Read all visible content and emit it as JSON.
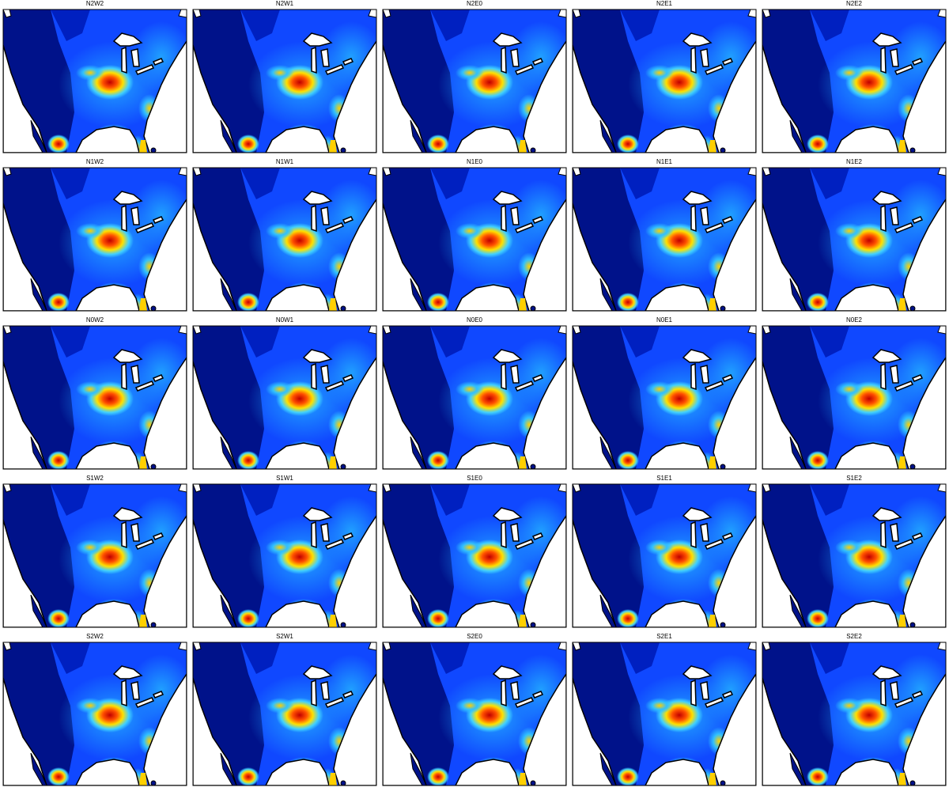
{
  "panels": [
    {
      "title": "N2W2"
    },
    {
      "title": "N2W1"
    },
    {
      "title": "N2E0"
    },
    {
      "title": "N2E1"
    },
    {
      "title": "N2E2"
    },
    {
      "title": "N1W2"
    },
    {
      "title": "N1W1"
    },
    {
      "title": "N1E0"
    },
    {
      "title": "N1E1"
    },
    {
      "title": "N1E2"
    },
    {
      "title": "N0W2"
    },
    {
      "title": "N0W1"
    },
    {
      "title": "N0E0"
    },
    {
      "title": "N0E1"
    },
    {
      "title": "N0E2"
    },
    {
      "title": "S1W2"
    },
    {
      "title": "S1W1"
    },
    {
      "title": "S1E0"
    },
    {
      "title": "S1E1"
    },
    {
      "title": "S1E2"
    },
    {
      "title": "S2W2"
    },
    {
      "title": "S2W1"
    },
    {
      "title": "S2E0"
    },
    {
      "title": "S2E1"
    },
    {
      "title": "S2E2"
    }
  ]
}
